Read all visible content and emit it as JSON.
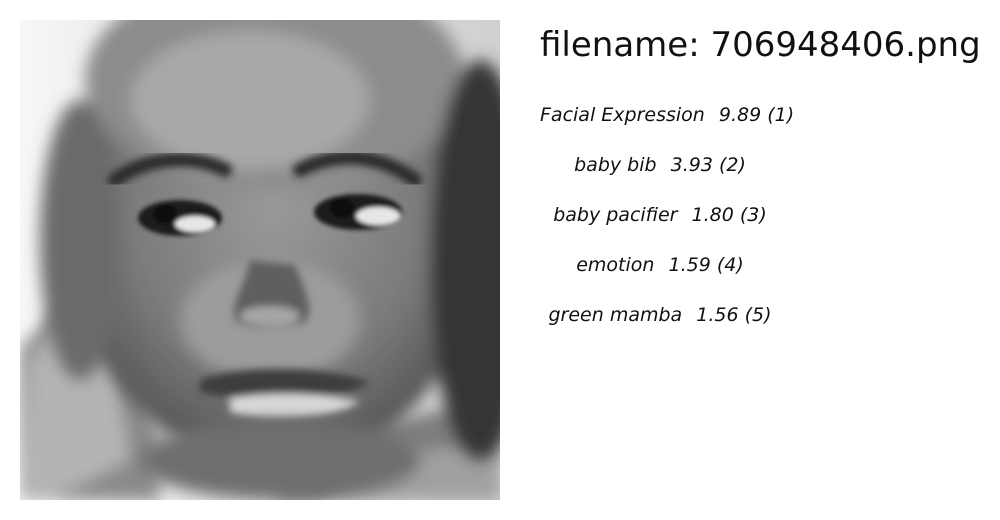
{
  "header": {
    "filename_label": "filename:",
    "filename_value": "706948406.png"
  },
  "photo": {
    "subject": "grayscale close-up portrait of a baby"
  },
  "predictions": [
    {
      "name": "Facial Expression",
      "score": "9.89",
      "rank": "(1)"
    },
    {
      "name": "baby bib",
      "score": "3.93",
      "rank": "(2)"
    },
    {
      "name": "baby pacifier",
      "score": "1.80",
      "rank": "(3)"
    },
    {
      "name": "emotion",
      "score": "1.59",
      "rank": "(4)"
    },
    {
      "name": "green mamba",
      "score": "1.56",
      "rank": "(5)"
    }
  ]
}
